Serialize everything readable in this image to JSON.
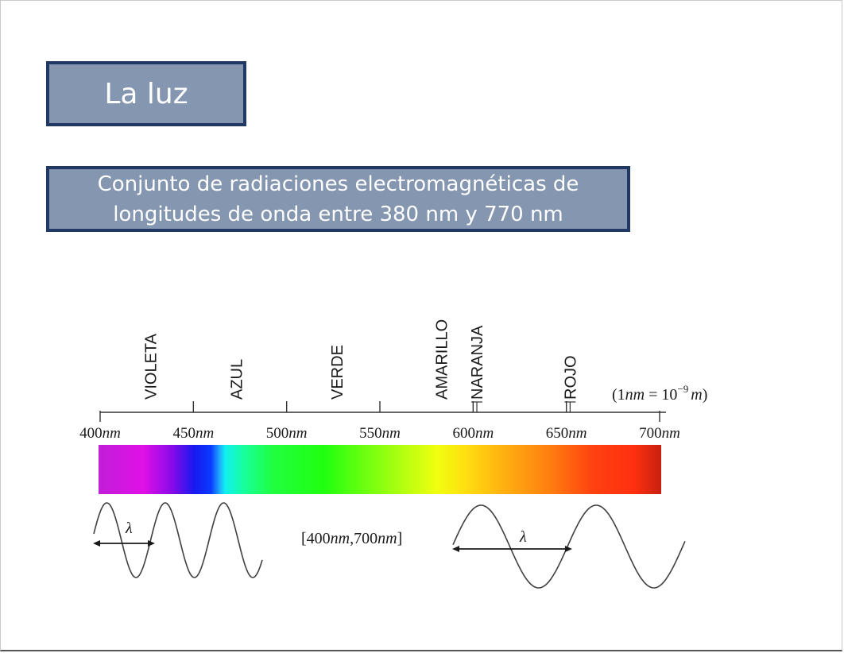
{
  "slide": {
    "title": "La luz",
    "subtitle_line1": "Conjunto de radiaciones electromagnéticas de",
    "subtitle_line2": "longitudes de onda entre 380 nm y 770 nm"
  },
  "spectrum": {
    "axis_min_nm": 400,
    "axis_max_nm": 700,
    "ticks": [
      {
        "value": 400,
        "num": "400",
        "unit": "nm"
      },
      {
        "value": 450,
        "num": "450",
        "unit": "nm"
      },
      {
        "value": 500,
        "num": "500",
        "unit": "nm"
      },
      {
        "value": 550,
        "num": "550",
        "unit": "nm"
      },
      {
        "value": 600,
        "num": "600",
        "unit": "nm"
      },
      {
        "value": 650,
        "num": "650",
        "unit": "nm"
      },
      {
        "value": 700,
        "num": "700",
        "unit": "nm"
      }
    ],
    "color_labels": [
      {
        "text": "VIOLETA",
        "at_nm": 427
      },
      {
        "text": "AZUL",
        "at_nm": 473
      },
      {
        "text": "VERDE",
        "at_nm": 527
      },
      {
        "text": "AMARILLO",
        "at_nm": 583
      },
      {
        "text": "NARANJA",
        "at_nm": 602
      },
      {
        "text": "ROJO",
        "at_nm": 652
      }
    ],
    "label_ticks_nm": [
      602,
      652
    ],
    "unit_note": {
      "open": "(1",
      "nm": "nm",
      "eq": " = 10",
      "exp": "−9",
      "m": "m",
      "close": ")"
    },
    "range_text": {
      "open": "[400",
      "nm1": "nm",
      "mid": ",700",
      "nm2": "nm",
      "close": "]"
    },
    "lambda_symbol": "λ",
    "gradient_stops": [
      {
        "offset": 0.0,
        "color": "#c21ed8"
      },
      {
        "offset": 0.08,
        "color": "#e010e6"
      },
      {
        "offset": 0.13,
        "color": "#8a0ae8"
      },
      {
        "offset": 0.17,
        "color": "#1818f0"
      },
      {
        "offset": 0.2,
        "color": "#0a3cff"
      },
      {
        "offset": 0.215,
        "color": "#20a8ff"
      },
      {
        "offset": 0.225,
        "color": "#10f0f0"
      },
      {
        "offset": 0.26,
        "color": "#18ff9a"
      },
      {
        "offset": 0.31,
        "color": "#20ff40"
      },
      {
        "offset": 0.4,
        "color": "#20ff10"
      },
      {
        "offset": 0.5,
        "color": "#88ff10"
      },
      {
        "offset": 0.6,
        "color": "#f0ff10"
      },
      {
        "offset": 0.65,
        "color": "#ffe010"
      },
      {
        "offset": 0.72,
        "color": "#ffb010"
      },
      {
        "offset": 0.8,
        "color": "#ff8010"
      },
      {
        "offset": 0.88,
        "color": "#ff4010"
      },
      {
        "offset": 0.95,
        "color": "#ff3010"
      },
      {
        "offset": 1.0,
        "color": "#c82010"
      }
    ],
    "accent": "#1f3864",
    "box_fill": "#8496b0"
  }
}
